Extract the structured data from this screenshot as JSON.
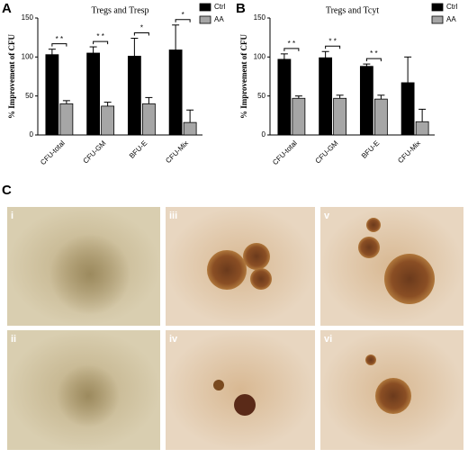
{
  "chart_data": [
    {
      "type": "bar",
      "title": "Tregs and Tresp",
      "y_label": "% Improvement of CFU",
      "categories": [
        "CFU-total",
        "CFU-GM",
        "BFU-E",
        "CFU-Mix"
      ],
      "series": [
        {
          "name": "Ctrl",
          "color": "#000000",
          "values": [
            103,
            105,
            101,
            109
          ],
          "errors": [
            7,
            8,
            23,
            32
          ]
        },
        {
          "name": "AA",
          "color": "#a6a6a6",
          "values": [
            40,
            37,
            40,
            16
          ],
          "errors": [
            4,
            5,
            8,
            16
          ]
        }
      ],
      "annotations": [
        "* *",
        "* *",
        "*",
        "*"
      ],
      "ylim": [
        0,
        150
      ],
      "yticks": [
        0,
        50,
        100,
        150
      ]
    },
    {
      "type": "bar",
      "title": "Tregs and Tcyt",
      "y_label": "% Improvement of CFU",
      "categories": [
        "CFU-total",
        "CFU-GM",
        "BFU-E",
        "CFU-Mix"
      ],
      "series": [
        {
          "name": "Ctrl",
          "color": "#000000",
          "values": [
            97,
            99,
            88,
            67
          ],
          "errors": [
            7,
            8,
            3,
            33
          ]
        },
        {
          "name": "AA",
          "color": "#a6a6a6",
          "values": [
            47,
            47,
            46,
            17
          ],
          "errors": [
            3,
            4,
            5,
            16
          ]
        }
      ],
      "annotations": [
        "* *",
        "* *",
        "* *",
        null
      ],
      "ylim": [
        0,
        150
      ],
      "yticks": [
        0,
        50,
        100,
        150
      ]
    }
  ],
  "panel_labels": [
    "A",
    "B",
    "C"
  ],
  "photo_labels": [
    "i",
    "iii",
    "v",
    "ii",
    "iv",
    "vi"
  ]
}
